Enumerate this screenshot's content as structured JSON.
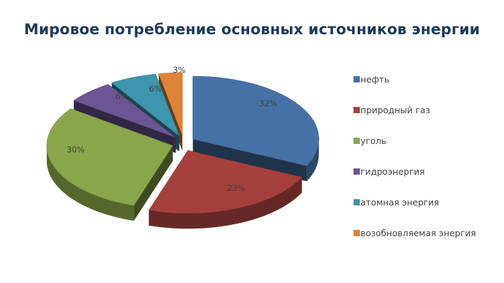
{
  "title": "Мировое потребление основных источников энергии",
  "chart_data": {
    "type": "pie",
    "title": "Мировое потребление основных источников энергии",
    "legend_position": "right",
    "slices": [
      {
        "label": "нефть",
        "value": 32,
        "value_label": "32%",
        "color": "#4571a6"
      },
      {
        "label": "природный газ",
        "value": 23,
        "value_label": "23%",
        "color": "#a5403d"
      },
      {
        "label": "уголь",
        "value": 30,
        "value_label": "30%",
        "color": "#8aa64a"
      },
      {
        "label": "гидроэнергия",
        "value": 6,
        "value_label": "6%",
        "color": "#6c5594"
      },
      {
        "label": "атомная энергия",
        "value": 6,
        "value_label": "6%",
        "color": "#3d95ae"
      },
      {
        "label": "возобновляемая энергия",
        "value": 3,
        "value_label": "3%",
        "color": "#dc843a"
      }
    ]
  }
}
